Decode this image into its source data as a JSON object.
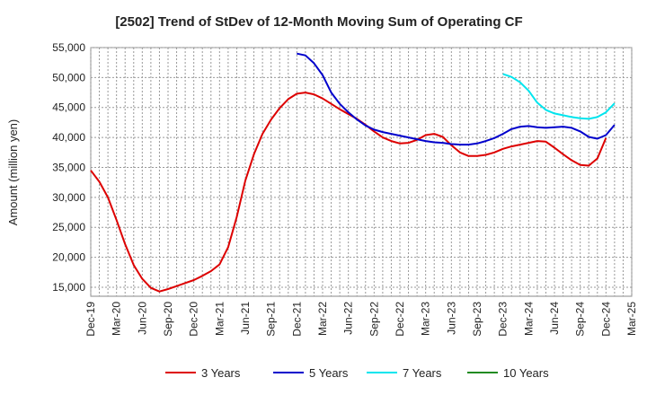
{
  "chart_data": {
    "type": "line",
    "title": "[2502]  Trend of StDev of 12-Month Moving Sum of Operating CF",
    "xlabel": "",
    "ylabel": "Amount (million yen)",
    "ylim": [
      13500,
      55000
    ],
    "yticks": [
      15000,
      20000,
      25000,
      30000,
      35000,
      40000,
      45000,
      50000,
      55000
    ],
    "ytick_labels": [
      "15,000",
      "20,000",
      "25,000",
      "30,000",
      "35,000",
      "40,000",
      "45,000",
      "50,000",
      "55,000"
    ],
    "xticks": [
      "Dec-19",
      "Mar-20",
      "Jun-20",
      "Sep-20",
      "Dec-20",
      "Mar-21",
      "Jun-21",
      "Sep-21",
      "Dec-21",
      "Mar-22",
      "Jun-22",
      "Sep-22",
      "Dec-22",
      "Mar-23",
      "Jun-23",
      "Sep-23",
      "Dec-23",
      "Mar-24",
      "Jun-24",
      "Sep-24",
      "Dec-24",
      "Mar-25"
    ],
    "grid": true,
    "legend_position": "bottom",
    "series": [
      {
        "name": "3 Years",
        "color": "#dd0000",
        "start_index": 0,
        "values": [
          34500,
          32600,
          30000,
          26200,
          22200,
          18700,
          16400,
          14900,
          14300,
          14700,
          15200,
          15700,
          16200,
          16900,
          17700,
          18800,
          21700,
          26700,
          32800,
          37200,
          40600,
          43000,
          44900,
          46400,
          47300,
          47500,
          47200,
          46500,
          45600,
          44700,
          43900,
          43100,
          42100,
          41000,
          40000,
          39400,
          39000,
          39100,
          39600,
          40400,
          40600,
          40100,
          38700,
          37500,
          36900,
          36900,
          37100,
          37500,
          38100,
          38500,
          38800,
          39100,
          39400,
          39300,
          38300,
          37200,
          36200,
          35400,
          35300,
          36500,
          39900
        ]
      },
      {
        "name": "5 Years",
        "color": "#0000cc",
        "start_index": 24,
        "values": [
          54000,
          53700,
          52400,
          50400,
          47500,
          45600,
          44200,
          43000,
          42000,
          41300,
          40900,
          40600,
          40300,
          40000,
          39700,
          39400,
          39200,
          39100,
          38900,
          38800,
          38800,
          39000,
          39400,
          39900,
          40600,
          41400,
          41800,
          41900,
          41700,
          41600,
          41700,
          41800,
          41600,
          41000,
          40100,
          39800,
          40400,
          42100
        ]
      },
      {
        "name": "7 Years",
        "color": "#00e5ee",
        "start_index": 48,
        "values": [
          50600,
          50100,
          49200,
          47800,
          45800,
          44600,
          44000,
          43700,
          43400,
          43200,
          43100,
          43400,
          44200,
          45700
        ]
      },
      {
        "name": "10 Years",
        "color": "#228b22",
        "start_index": 0,
        "values": []
      }
    ]
  }
}
